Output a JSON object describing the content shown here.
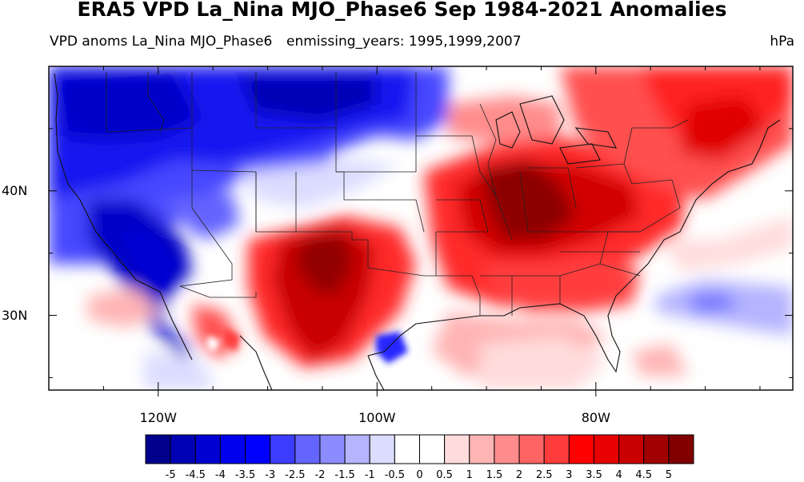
{
  "title": "ERA5 VPD La_Nina MJO_Phase6 Sep 1984-2021 Anomalies",
  "left_subtitle": "VPD anoms La_Nina MJO_Phase6",
  "center_subtitle": "enmissing_years: 1995,1999,2007",
  "units": "hPa",
  "map": {
    "projection": "cylindrical equidistant",
    "region": "contiguous United States",
    "lon_range": [
      -130,
      -62
    ],
    "lat_range": [
      24,
      50
    ],
    "lon_ticks": [
      {
        "value": -120,
        "label": "120W"
      },
      {
        "value": -100,
        "label": "100W"
      },
      {
        "value": -80,
        "label": "80W"
      }
    ],
    "lat_ticks": [
      {
        "value": 40,
        "label": "40N"
      },
      {
        "value": 30,
        "label": "30N"
      }
    ],
    "overlays": [
      "coastlines",
      "state boundaries"
    ]
  },
  "colorbar": {
    "levels": [
      "-5",
      "-4.5",
      "-4",
      "-3.5",
      "-3",
      "-2.5",
      "-2",
      "-1.5",
      "-1",
      "-0.5",
      "0",
      "0.5",
      "1",
      "1.5",
      "2",
      "2.5",
      "3",
      "3.5",
      "4",
      "4.5",
      "5"
    ],
    "colors": [
      "#00008c",
      "#0000b4",
      "#0000d2",
      "#0000ee",
      "#0000ff",
      "#3c3cff",
      "#6464ff",
      "#8c8cff",
      "#b4b4ff",
      "#dcdcff",
      "#ffffff",
      "#ffffff",
      "#ffdcdc",
      "#ffb4b4",
      "#ff8c8c",
      "#ff6464",
      "#ff3c3c",
      "#ff0000",
      "#e60000",
      "#c80000",
      "#a00000",
      "#800000"
    ]
  },
  "anomaly_regions": [
    {
      "label": "northern Rockies / northern Plains",
      "sign": "negative",
      "peak_hPa": -5
    },
    {
      "label": "California / Southwest coast",
      "sign": "negative",
      "peak_hPa": -5
    },
    {
      "label": "southern Plains / West Texas",
      "sign": "positive",
      "peak_hPa": 5
    },
    {
      "label": "Ohio Valley / Midwest",
      "sign": "positive",
      "peak_hPa": 5
    },
    {
      "label": "Northeast / New England",
      "sign": "positive",
      "peak_hPa": 3.5
    },
    {
      "label": "Southeast",
      "sign": "positive",
      "peak_hPa": 3
    },
    {
      "label": "western Atlantic",
      "sign": "negative",
      "peak_hPa": -1.5
    },
    {
      "label": "south Texas coast",
      "sign": "negative",
      "peak_hPa": -3
    }
  ]
}
